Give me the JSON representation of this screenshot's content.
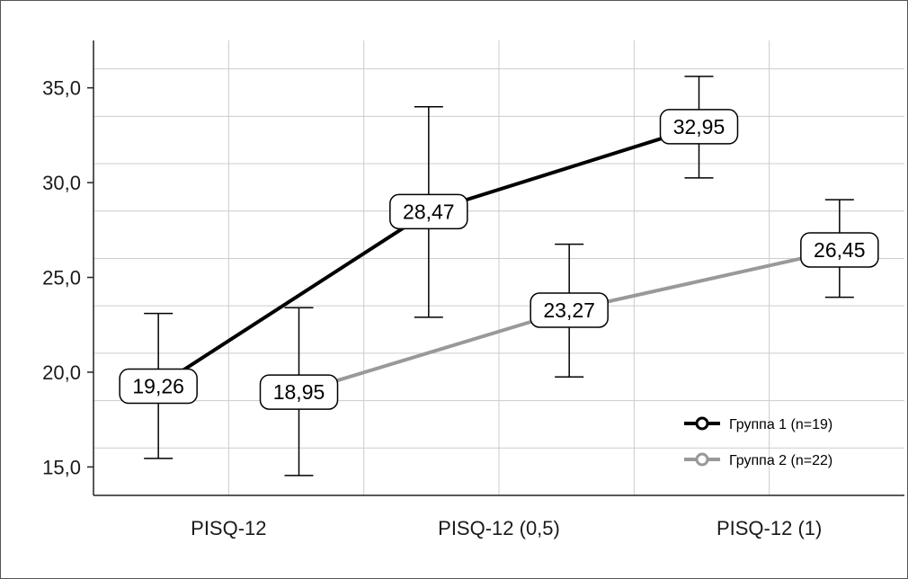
{
  "chart_data": {
    "type": "line",
    "categories": [
      "PISQ-12",
      "PISQ-12 (0,5)",
      "PISQ-12 (1)"
    ],
    "ylim": [
      13.5,
      37.5
    ],
    "yticks": [
      15,
      20,
      25,
      30,
      35
    ],
    "ytick_labels": [
      "15,0",
      "20,0",
      "25,0",
      "30,0",
      "35,0"
    ],
    "grid": true,
    "legend_position": "bottom-right",
    "series": [
      {
        "name": "Группа 1 (n=19)",
        "color": "#000000",
        "values": [
          19.26,
          28.47,
          32.95
        ],
        "labels": [
          "19,26",
          "28,47",
          "32,95"
        ],
        "err_low": [
          15.45,
          22.9,
          30.25
        ],
        "err_high": [
          23.1,
          34.0,
          35.6
        ]
      },
      {
        "name": "Группа 2 (n=22)",
        "color": "#999999",
        "values": [
          18.95,
          23.27,
          26.45
        ],
        "labels": [
          "18,95",
          "23,27",
          "26,45"
        ],
        "err_low": [
          14.55,
          19.75,
          23.95
        ],
        "err_high": [
          23.4,
          26.75,
          29.1
        ]
      }
    ]
  }
}
